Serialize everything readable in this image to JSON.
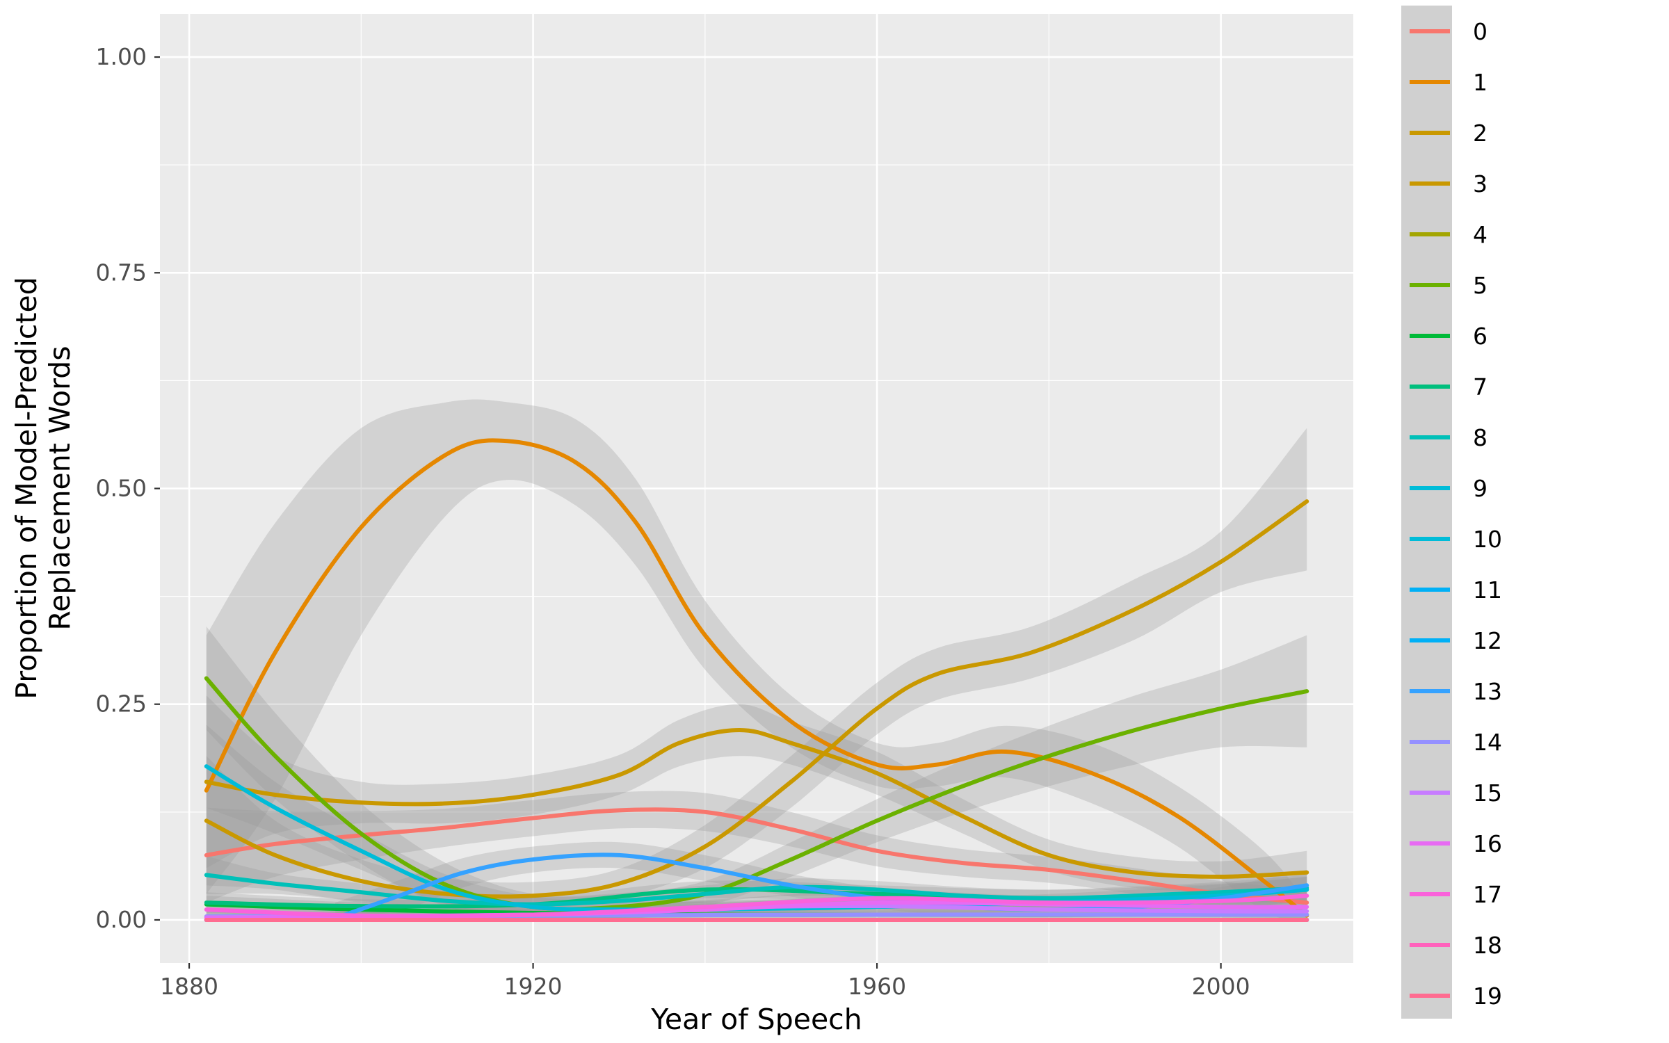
{
  "chart_data": {
    "type": "line",
    "title": "",
    "xlabel": "Year of Speech",
    "ylabel_lines": [
      "Proportion of Model-Predicted",
      "Replacement Words"
    ],
    "xlim": [
      1876.6,
      2015.4
    ],
    "ylim": [
      -0.05,
      1.05
    ],
    "x_ticks": [
      1880,
      1920,
      1960,
      2000
    ],
    "x_tick_labels": [
      "1880",
      "1920",
      "1960",
      "2000"
    ],
    "y_ticks": [
      0,
      0.25,
      0.5,
      0.75,
      1.0
    ],
    "y_tick_labels": [
      "0.00",
      "0.25",
      "0.50",
      "0.75",
      "1.00"
    ],
    "grid": true,
    "confidence_bands": true,
    "legend_position": "right",
    "panel_background": "#ebebeb",
    "band_color": "#999999",
    "series": [
      {
        "name": "0",
        "color": "#F8766D",
        "x": [
          1882,
          1890,
          1900,
          1910,
          1920,
          1930,
          1940,
          1950,
          1960,
          1970,
          1980,
          1990,
          2000,
          2010
        ],
        "y": [
          0.075,
          0.088,
          0.098,
          0.107,
          0.118,
          0.127,
          0.125,
          0.105,
          0.08,
          0.066,
          0.058,
          0.045,
          0.03,
          0.02
        ],
        "lo": [
          0.02,
          0.05,
          0.07,
          0.085,
          0.097,
          0.106,
          0.103,
          0.085,
          0.062,
          0.05,
          0.043,
          0.03,
          0.015,
          0.005
        ],
        "hi": [
          0.13,
          0.126,
          0.126,
          0.129,
          0.139,
          0.148,
          0.147,
          0.125,
          0.098,
          0.082,
          0.073,
          0.06,
          0.045,
          0.035
        ]
      },
      {
        "name": "1",
        "color": "#E58700",
        "x": [
          1882,
          1890,
          1900,
          1910,
          1917,
          1925,
          1932,
          1940,
          1950,
          1960,
          1967,
          1975,
          1985,
          1995,
          2005,
          2010
        ],
        "y": [
          0.15,
          0.31,
          0.455,
          0.54,
          0.555,
          0.53,
          0.46,
          0.33,
          0.23,
          0.18,
          0.18,
          0.195,
          0.17,
          0.12,
          0.045,
          0.005
        ],
        "lo": [
          0.03,
          0.14,
          0.33,
          0.47,
          0.51,
          0.48,
          0.41,
          0.29,
          0.2,
          0.155,
          0.155,
          0.165,
          0.135,
          0.085,
          0.01,
          0.0
        ],
        "hi": [
          0.33,
          0.46,
          0.57,
          0.6,
          0.6,
          0.58,
          0.51,
          0.37,
          0.26,
          0.205,
          0.205,
          0.225,
          0.205,
          0.155,
          0.08,
          0.02
        ]
      },
      {
        "name": "2",
        "color": "#C99800",
        "x": [
          1882,
          1890,
          1900,
          1910,
          1920,
          1930,
          1937,
          1944,
          1950,
          1960,
          1970,
          1980,
          1990,
          2000,
          2010
        ],
        "y": [
          0.16,
          0.145,
          0.136,
          0.135,
          0.145,
          0.168,
          0.205,
          0.22,
          0.205,
          0.17,
          0.12,
          0.075,
          0.055,
          0.05,
          0.055
        ],
        "lo": [
          0.06,
          0.1,
          0.112,
          0.112,
          0.122,
          0.145,
          0.178,
          0.19,
          0.18,
          0.145,
          0.1,
          0.057,
          0.037,
          0.032,
          0.03
        ],
        "hi": [
          0.26,
          0.19,
          0.16,
          0.158,
          0.168,
          0.191,
          0.232,
          0.25,
          0.23,
          0.195,
          0.14,
          0.093,
          0.073,
          0.068,
          0.08
        ]
      },
      {
        "name": "3",
        "color": "#C99800",
        "x": [
          1882,
          1890,
          1900,
          1910,
          1920,
          1930,
          1940,
          1950,
          1960,
          1967,
          1978,
          1990,
          2000,
          2010
        ],
        "y": [
          0.115,
          0.075,
          0.045,
          0.03,
          0.028,
          0.042,
          0.085,
          0.16,
          0.245,
          0.285,
          0.31,
          0.36,
          0.415,
          0.485
        ],
        "lo": [
          0.04,
          0.035,
          0.02,
          0.012,
          0.012,
          0.025,
          0.06,
          0.13,
          0.215,
          0.255,
          0.28,
          0.325,
          0.38,
          0.405
        ],
        "hi": [
          0.19,
          0.115,
          0.07,
          0.048,
          0.044,
          0.059,
          0.11,
          0.19,
          0.275,
          0.315,
          0.34,
          0.395,
          0.45,
          0.57
        ]
      },
      {
        "name": "4",
        "color": "#A3A500",
        "x": [
          1882,
          2010
        ],
        "y": [
          0.0,
          0.0
        ],
        "lo": [
          0.0,
          0.0
        ],
        "hi": [
          0.0,
          0.0
        ]
      },
      {
        "name": "5",
        "color": "#6BB100",
        "x": [
          1882,
          1890,
          1900,
          1910,
          1920,
          1930,
          1940,
          1950,
          1960,
          1970,
          1980,
          1990,
          2000,
          2010
        ],
        "y": [
          0.28,
          0.19,
          0.1,
          0.04,
          0.015,
          0.015,
          0.03,
          0.07,
          0.115,
          0.155,
          0.19,
          0.22,
          0.245,
          0.265
        ],
        "lo": [
          0.22,
          0.14,
          0.065,
          0.015,
          0.0,
          0.0,
          0.015,
          0.05,
          0.09,
          0.125,
          0.155,
          0.18,
          0.2,
          0.2
        ],
        "hi": [
          0.34,
          0.24,
          0.135,
          0.065,
          0.03,
          0.03,
          0.045,
          0.09,
          0.14,
          0.185,
          0.225,
          0.26,
          0.29,
          0.33
        ]
      },
      {
        "name": "6",
        "color": "#00BA38",
        "x": [
          1882,
          1900,
          1920,
          1940,
          1960,
          1980,
          2000,
          2010
        ],
        "y": [
          0.018,
          0.012,
          0.008,
          0.006,
          0.006,
          0.006,
          0.006,
          0.006
        ],
        "lo": [
          0.008,
          0.004,
          0.002,
          0.001,
          0.001,
          0.001,
          0.001,
          0.0
        ],
        "hi": [
          0.028,
          0.02,
          0.014,
          0.011,
          0.011,
          0.011,
          0.011,
          0.012
        ]
      },
      {
        "name": "7",
        "color": "#00BF7D",
        "x": [
          1882,
          1900,
          1920,
          1940,
          1960,
          1980,
          2000,
          2010
        ],
        "y": [
          0.02,
          0.016,
          0.018,
          0.035,
          0.03,
          0.025,
          0.03,
          0.035
        ],
        "lo": [
          0.008,
          0.008,
          0.01,
          0.025,
          0.02,
          0.015,
          0.018,
          0.02
        ],
        "hi": [
          0.032,
          0.024,
          0.026,
          0.045,
          0.04,
          0.035,
          0.042,
          0.05
        ]
      },
      {
        "name": "8",
        "color": "#00C0B8",
        "x": [
          1882,
          1890,
          1900,
          1910,
          1920,
          1930,
          1940,
          1950,
          1960,
          1970,
          1980,
          1990,
          2000,
          2010
        ],
        "y": [
          0.052,
          0.042,
          0.032,
          0.022,
          0.018,
          0.022,
          0.03,
          0.038,
          0.035,
          0.028,
          0.025,
          0.028,
          0.032,
          0.037
        ],
        "lo": [
          0.03,
          0.03,
          0.022,
          0.013,
          0.01,
          0.013,
          0.02,
          0.028,
          0.025,
          0.018,
          0.015,
          0.017,
          0.02,
          0.022
        ],
        "hi": [
          0.074,
          0.054,
          0.042,
          0.031,
          0.026,
          0.031,
          0.04,
          0.048,
          0.045,
          0.038,
          0.035,
          0.039,
          0.044,
          0.052
        ]
      },
      {
        "name": "9",
        "color": "#00BCD8",
        "x": [
          1882,
          1890,
          1900,
          1910,
          1920,
          1930,
          1940,
          1960,
          1980,
          2000,
          2010
        ],
        "y": [
          0.178,
          0.13,
          0.08,
          0.035,
          0.015,
          0.012,
          0.012,
          0.015,
          0.02,
          0.028,
          0.035
        ],
        "lo": [
          0.13,
          0.1,
          0.058,
          0.018,
          0.003,
          0.002,
          0.003,
          0.006,
          0.01,
          0.015,
          0.02
        ],
        "hi": [
          0.226,
          0.16,
          0.102,
          0.052,
          0.027,
          0.022,
          0.021,
          0.024,
          0.03,
          0.041,
          0.05
        ]
      },
      {
        "name": "10",
        "color": "#00BCD8",
        "x": [
          1882,
          2010
        ],
        "y": [
          0.0,
          0.0
        ],
        "lo": [
          0.0,
          0.0
        ],
        "hi": [
          0.0,
          0.0
        ]
      },
      {
        "name": "11",
        "color": "#00B0F6",
        "x": [
          1882,
          2010
        ],
        "y": [
          0.0,
          0.0
        ],
        "lo": [
          0.0,
          0.0
        ],
        "hi": [
          0.0,
          0.0
        ]
      },
      {
        "name": "12",
        "color": "#00B0F6",
        "x": [
          1882,
          2010
        ],
        "y": [
          0.0,
          0.0
        ],
        "lo": [
          0.0,
          0.0
        ],
        "hi": [
          0.0,
          0.0
        ]
      },
      {
        "name": "13",
        "color": "#35A2FF",
        "x": [
          1897,
          1905,
          1912,
          1920,
          1930,
          1940,
          1950,
          1960,
          1970,
          1980,
          1990,
          2000,
          2010
        ],
        "y": [
          0.002,
          0.03,
          0.055,
          0.07,
          0.075,
          0.06,
          0.04,
          0.025,
          0.015,
          0.012,
          0.015,
          0.025,
          0.04
        ],
        "lo": [
          0.0,
          0.012,
          0.038,
          0.055,
          0.06,
          0.045,
          0.027,
          0.013,
          0.005,
          0.003,
          0.005,
          0.012,
          0.022
        ],
        "hi": [
          0.02,
          0.048,
          0.072,
          0.085,
          0.09,
          0.075,
          0.053,
          0.037,
          0.025,
          0.021,
          0.025,
          0.038,
          0.058
        ]
      },
      {
        "name": "14",
        "color": "#9590FF",
        "x": [
          1882,
          1920,
          1960,
          2000,
          2010
        ],
        "y": [
          0.004,
          0.005,
          0.006,
          0.006,
          0.006
        ],
        "lo": [
          0.0,
          0.0,
          0.0,
          0.0,
          0.0
        ],
        "hi": [
          0.01,
          0.01,
          0.012,
          0.012,
          0.012
        ]
      },
      {
        "name": "15",
        "color": "#C77CFF",
        "x": [
          1882,
          1920,
          1940,
          1960,
          1980,
          2000,
          2010
        ],
        "y": [
          0.003,
          0.006,
          0.014,
          0.016,
          0.012,
          0.01,
          0.01
        ],
        "lo": [
          0.0,
          0.0,
          0.006,
          0.008,
          0.005,
          0.003,
          0.002
        ],
        "hi": [
          0.008,
          0.012,
          0.022,
          0.024,
          0.019,
          0.017,
          0.018
        ]
      },
      {
        "name": "16",
        "color": "#E76BF3",
        "x": [
          1882,
          1920,
          1940,
          1960,
          1980,
          2000,
          2010
        ],
        "y": [
          0.002,
          0.006,
          0.012,
          0.02,
          0.018,
          0.015,
          0.015
        ],
        "lo": [
          0.0,
          0.0,
          0.005,
          0.012,
          0.01,
          0.007,
          0.005
        ],
        "hi": [
          0.006,
          0.012,
          0.019,
          0.028,
          0.026,
          0.023,
          0.025
        ]
      },
      {
        "name": "17",
        "color": "#FA62DB",
        "x": [
          1882,
          1900,
          1920,
          1940,
          1960,
          1980,
          2000,
          2010
        ],
        "y": [
          0.012,
          0.005,
          0.006,
          0.015,
          0.025,
          0.02,
          0.022,
          0.028
        ],
        "lo": [
          0.004,
          0.0,
          0.0,
          0.007,
          0.016,
          0.012,
          0.012,
          0.015
        ],
        "hi": [
          0.02,
          0.01,
          0.012,
          0.023,
          0.034,
          0.028,
          0.032,
          0.041
        ]
      },
      {
        "name": "18",
        "color": "#FF62BC",
        "x": [
          1882,
          2010
        ],
        "y": [
          0.0,
          0.0
        ],
        "lo": [
          0.0,
          0.0
        ],
        "hi": [
          0.0,
          0.0
        ]
      },
      {
        "name": "19",
        "color": "#FF6C91",
        "x": [
          1882,
          2010
        ],
        "y": [
          0.0,
          0.0
        ],
        "lo": [
          0.0,
          0.0
        ],
        "hi": [
          0.0,
          0.0
        ]
      }
    ]
  }
}
